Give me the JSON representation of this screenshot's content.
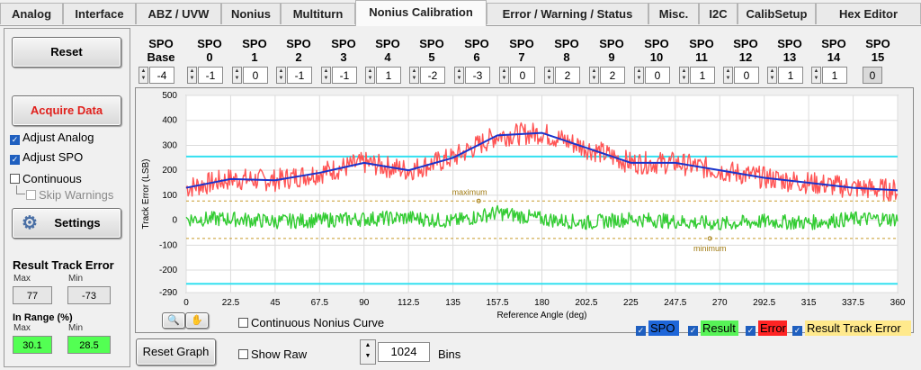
{
  "tabs": [
    {
      "label": "Analog",
      "active": false
    },
    {
      "label": "Interface",
      "active": false
    },
    {
      "label": "ABZ / UVW",
      "active": false
    },
    {
      "label": "Nonius",
      "active": false
    },
    {
      "label": "Multiturn",
      "active": false
    },
    {
      "label": "Nonius Calibration",
      "active": true
    },
    {
      "label": "Error / Warning / Status",
      "active": false
    },
    {
      "label": "Misc.",
      "active": false
    },
    {
      "label": "I2C",
      "active": false
    },
    {
      "label": "CalibSetup",
      "active": false
    },
    {
      "label": "Hex Editor",
      "active": false
    }
  ],
  "left": {
    "reset_label": "Reset",
    "acquire_label": "Acquire Data",
    "adjust_analog": {
      "label": "Adjust Analog",
      "checked": true
    },
    "adjust_spo": {
      "label": "Adjust SPO",
      "checked": true
    },
    "continuous": {
      "label": "Continuous",
      "checked": false
    },
    "skip_warnings": {
      "label": "Skip Warnings",
      "checked": false
    },
    "settings_label": "Settings",
    "result_title": "Result Track Error",
    "max_label": "Max",
    "min_label": "Min",
    "max_value": "77",
    "min_value": "-73",
    "in_range_title": "In Range (%)",
    "range_max_label": "Max",
    "range_min_label": "Min",
    "range_max_value": "30.1",
    "range_min_value": "28.5"
  },
  "spo": [
    {
      "l1": "SPO",
      "l2": "Base",
      "value": "-4"
    },
    {
      "l1": "SPO",
      "l2": "0",
      "value": "-1"
    },
    {
      "l1": "SPO",
      "l2": "1",
      "value": "0"
    },
    {
      "l1": "SPO",
      "l2": "2",
      "value": "-1"
    },
    {
      "l1": "SPO",
      "l2": "3",
      "value": "-1"
    },
    {
      "l1": "SPO",
      "l2": "4",
      "value": "1"
    },
    {
      "l1": "SPO",
      "l2": "5",
      "value": "-2"
    },
    {
      "l1": "SPO",
      "l2": "6",
      "value": "-3"
    },
    {
      "l1": "SPO",
      "l2": "7",
      "value": "0"
    },
    {
      "l1": "SPO",
      "l2": "8",
      "value": "2"
    },
    {
      "l1": "SPO",
      "l2": "9",
      "value": "2"
    },
    {
      "l1": "SPO",
      "l2": "10",
      "value": "0"
    },
    {
      "l1": "SPO",
      "l2": "11",
      "value": "1"
    },
    {
      "l1": "SPO",
      "l2": "12",
      "value": "0"
    },
    {
      "l1": "SPO",
      "l2": "13",
      "value": "1"
    },
    {
      "l1": "SPO",
      "l2": "14",
      "value": "1"
    },
    {
      "l1": "SPO",
      "l2": "15",
      "value": "0"
    }
  ],
  "bottom": {
    "continuous_curve": {
      "label": "Continuous Nonius Curve",
      "checked": false
    },
    "reset_graph_label": "Reset Graph",
    "show_raw": {
      "label": "Show Raw",
      "checked": false
    },
    "bins_value": "1024",
    "bins_label": "Bins"
  },
  "legend": [
    {
      "label": "SPO",
      "bg": "#1e66d9",
      "fg": "#000",
      "checked": true
    },
    {
      "label": "Result",
      "bg": "#57f357",
      "fg": "#000",
      "checked": true
    },
    {
      "label": "Error",
      "bg": "#ff2424",
      "fg": "#000",
      "checked": true
    },
    {
      "label": "Result Track Error",
      "bg": "#ffe98c",
      "fg": "#000",
      "checked": true
    }
  ],
  "chart_data": {
    "type": "line",
    "ylabel": "Track Error (LSB)",
    "xlabel": "Reference Angle (deg)",
    "xlim": [
      0,
      360
    ],
    "ylim": [
      -290,
      500
    ],
    "x_ticks": [
      "0",
      "22.5",
      "45",
      "67.5",
      "90",
      "112.5",
      "135",
      "157.5",
      "180",
      "202.5",
      "225",
      "247.5",
      "270",
      "292.5",
      "315",
      "337.5",
      "360"
    ],
    "y_ticks": [
      "500",
      "400",
      "300",
      "200",
      "100",
      "0",
      "-100",
      "-200",
      "-290"
    ],
    "limit_lines": [
      255,
      -255
    ],
    "maximum": {
      "label": "maximum",
      "x": 148,
      "value": 77
    },
    "minimum": {
      "label": "minimum",
      "x": 265,
      "value": -73
    },
    "series": [
      {
        "name": "SPO",
        "color": "#1a33cc",
        "x": [
          0,
          22.5,
          45,
          67.5,
          90,
          112.5,
          135,
          157.5,
          180,
          202.5,
          225,
          247.5,
          270,
          292.5,
          315,
          337.5,
          360
        ],
        "values": [
          130,
          165,
          160,
          190,
          230,
          200,
          250,
          340,
          350,
          290,
          230,
          230,
          200,
          170,
          150,
          130,
          120
        ]
      },
      {
        "name": "Result",
        "color": "#33cc33",
        "x": [
          0,
          22.5,
          45,
          67.5,
          90,
          112.5,
          135,
          157.5,
          180,
          202.5,
          225,
          247.5,
          270,
          292.5,
          315,
          337.5,
          360
        ],
        "values": [
          5,
          5,
          -5,
          0,
          5,
          10,
          -5,
          30,
          5,
          -10,
          5,
          -5,
          -15,
          -5,
          -10,
          5,
          5
        ]
      },
      {
        "name": "Error",
        "color": "#ff5555",
        "x": [
          0,
          22.5,
          45,
          67.5,
          90,
          112.5,
          135,
          157.5,
          180,
          202.5,
          225,
          247.5,
          270,
          292.5,
          315,
          337.5,
          360
        ],
        "values": [
          130,
          165,
          160,
          190,
          230,
          200,
          250,
          340,
          350,
          290,
          230,
          230,
          200,
          170,
          150,
          130,
          120
        ]
      }
    ]
  }
}
